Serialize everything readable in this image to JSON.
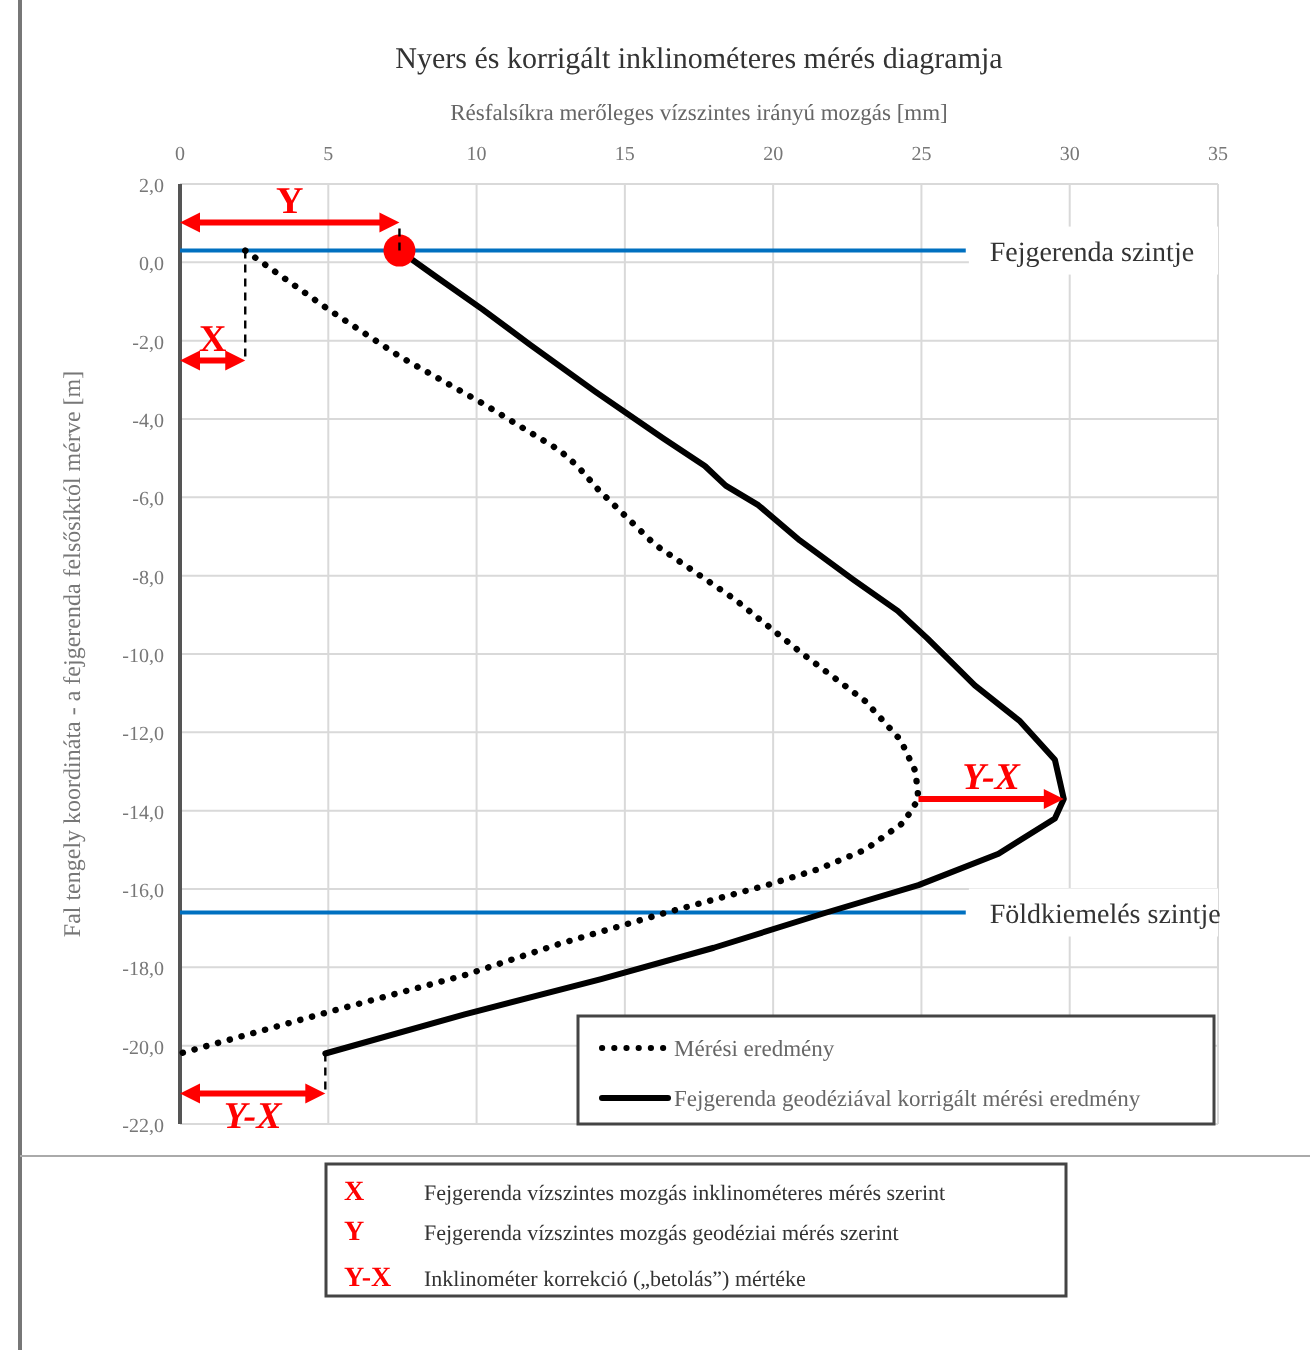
{
  "chart_data": {
    "type": "line",
    "title": "Nyers és korrigált inklinométeres mérés diagramja",
    "xlabel": "Résfalsíkra merőleges vízszintes irányú mozgás [mm]",
    "ylabel": "Fal tengely koordináta - a fejgerenda felsősíktól mérve  [m]",
    "xlim": [
      0,
      35
    ],
    "xticks": [
      0,
      5,
      10,
      15,
      20,
      25,
      30,
      35
    ],
    "ylim": [
      -22,
      2
    ],
    "yticks": [
      {
        "value": 2,
        "label": "2,0"
      },
      {
        "value": 0,
        "label": "0,0"
      },
      {
        "value": -2,
        "label": "-2,0"
      },
      {
        "value": -4,
        "label": "-4,0"
      },
      {
        "value": -6,
        "label": "-6,0"
      },
      {
        "value": -8,
        "label": "-8,0"
      },
      {
        "value": -10,
        "label": "-10,0"
      },
      {
        "value": -12,
        "label": "-12,0"
      },
      {
        "value": -14,
        "label": "-14,0"
      },
      {
        "value": -16,
        "label": "-16,0"
      },
      {
        "value": -18,
        "label": "-18,0"
      },
      {
        "value": -20,
        "label": "-20,0"
      },
      {
        "value": -22,
        "label": "-22,0"
      }
    ],
    "grid": true,
    "legend": "bottom right",
    "series": [
      {
        "name": "Mérési eredmény",
        "color": "#000000",
        "line_style": "dotted",
        "x": [
          2.2,
          5,
          7.4,
          10.2,
          12.8,
          13.4,
          14.1,
          16,
          18.7,
          21,
          23.1,
          24.3,
          24.8,
          24.9,
          24.4,
          23.1,
          21.5,
          19.8,
          16.4,
          12.8,
          9.6,
          5.2,
          0
        ],
        "values": [
          0.3,
          -1.2,
          -2.4,
          -3.6,
          -4.8,
          -5.2,
          -5.8,
          -7.2,
          -8.6,
          -10,
          -11.2,
          -12.2,
          -13,
          -13.7,
          -14.3,
          -15,
          -15.5,
          -15.9,
          -16.6,
          -17.4,
          -18.2,
          -19.1,
          -20.2
        ]
      },
      {
        "name": "Fejgerenda geodéziával korrigált mérési eredmény",
        "color": "#000000",
        "line_style": "solid",
        "x": [
          7.4,
          8.6,
          10.2,
          11.8,
          14,
          16.3,
          17.7,
          18.4,
          19.5,
          20.9,
          22.7,
          24.2,
          25.2,
          26.8,
          28.3,
          29.5,
          29.8,
          29.5,
          27.6,
          24.9,
          21.8,
          18,
          14.2,
          9.6,
          4.9
        ],
        "values": [
          0.3,
          -0.35,
          -1.2,
          -2.1,
          -3.3,
          -4.5,
          -5.2,
          -5.7,
          -6.2,
          -7.1,
          -8.1,
          -8.9,
          -9.6,
          -10.8,
          -11.7,
          -12.7,
          -13.7,
          -14.2,
          -15.1,
          -15.9,
          -16.6,
          -17.5,
          -18.3,
          -19.2,
          -20.2
        ]
      },
      {
        "type": "scatter",
        "marker": "circle",
        "color": "#ff0000",
        "x": [
          7.4
        ],
        "values": [
          0.3
        ]
      }
    ],
    "ref_lines": [
      {
        "axis": "y",
        "value": 0.3,
        "label": "Fejgerenda szintje",
        "color": "#0070c0"
      },
      {
        "axis": "y",
        "value": -16.6,
        "label": "Földkiemelés szintje",
        "color": "#0070c0"
      }
    ],
    "annotations": [
      {
        "text": "Y",
        "x": 7.4,
        "y": 0.3
      },
      {
        "text": "X",
        "x": 2.2,
        "y": 0.3
      },
      {
        "text": "Y-X",
        "x": 29.8,
        "y": -13.7
      },
      {
        "text": "Y-X",
        "x": 4.9,
        "y": -20.2
      },
      "X",
      "Fejgerenda vízszintes mozgás inklinométeres mérés szerint",
      "Y",
      "Fejgerenda vízszintes mozgás geodéziai mérés szerint",
      "Y-X",
      "Inklinométer korrekció („betolás”) mértéke"
    ]
  }
}
